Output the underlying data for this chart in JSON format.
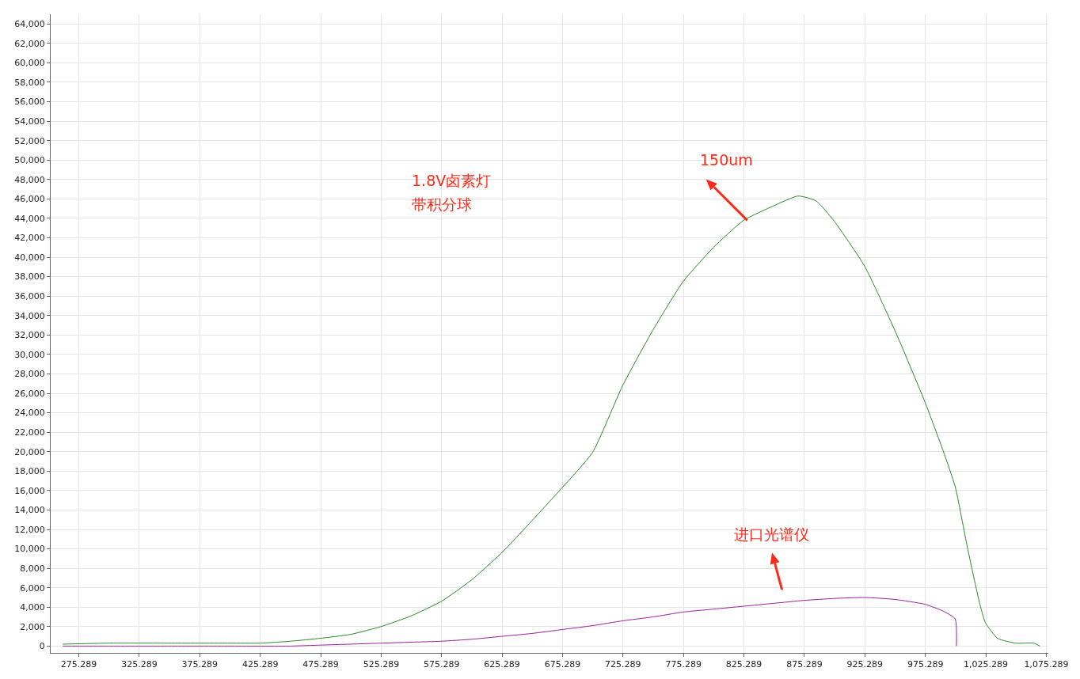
{
  "chart_data": {
    "type": "line",
    "x": [
      262,
      300,
      350,
      400,
      425,
      450,
      475,
      500,
      525,
      550,
      575,
      600,
      625,
      650,
      675,
      700,
      725,
      750,
      775,
      800,
      825,
      850,
      870,
      885,
      900,
      925,
      950,
      975,
      990,
      1000,
      1010,
      1020,
      1025,
      1035,
      1050,
      1065,
      1070
    ],
    "series": [
      {
        "color": "#2a8a2a",
        "values": [
          200,
          300,
          300,
          300,
          300,
          500,
          800,
          1200,
          2000,
          3100,
          4600,
          6800,
          9600,
          12900,
          16300,
          19900,
          26800,
          32500,
          37500,
          41000,
          43800,
          45300,
          46300,
          45800,
          43700,
          39100,
          32500,
          25100,
          20100,
          16400,
          10200,
          4500,
          2400,
          800,
          300,
          300,
          0
        ]
      },
      {
        "color": "#9c1f9c",
        "x": [
          262,
          300,
          350,
          400,
          450,
          475,
          500,
          525,
          550,
          575,
          600,
          625,
          650,
          675,
          700,
          725,
          750,
          775,
          800,
          825,
          850,
          875,
          900,
          925,
          950,
          975,
          990,
          1000,
          1001
        ],
        "values": [
          0,
          0,
          0,
          0,
          0,
          100,
          200,
          300,
          400,
          500,
          700,
          1000,
          1300,
          1700,
          2100,
          2600,
          3000,
          3500,
          3800,
          4100,
          4400,
          4700,
          4900,
          5000,
          4800,
          4300,
          3600,
          2800,
          0
        ]
      }
    ],
    "xlim": [
      252,
      1077
    ],
    "ylim": [
      -700,
      65000
    ],
    "xticks": [
      275.289,
      325.289,
      375.289,
      425.289,
      475.289,
      525.289,
      575.289,
      625.289,
      675.289,
      725.289,
      775.289,
      825.289,
      875.289,
      925.289,
      975.289,
      {
        "value": 1025.289,
        "label": "1,025.289"
      },
      {
        "value": 1075.289,
        "label": "1,075.289"
      }
    ],
    "yticks": [
      0,
      {
        "value": 2000,
        "label": "2,000"
      },
      {
        "value": 4000,
        "label": "4,000"
      },
      {
        "value": 6000,
        "label": "6,000"
      },
      {
        "value": 8000,
        "label": "8,000"
      },
      {
        "value": 10000,
        "label": "10,000"
      },
      {
        "value": 12000,
        "label": "12,000"
      },
      {
        "value": 14000,
        "label": "14,000"
      },
      {
        "value": 16000,
        "label": "16,000"
      },
      {
        "value": 18000,
        "label": "18,000"
      },
      {
        "value": 20000,
        "label": "20,000"
      },
      {
        "value": 22000,
        "label": "22,000"
      },
      {
        "value": 24000,
        "label": "24,000"
      },
      {
        "value": 26000,
        "label": "26,000"
      },
      {
        "value": 28000,
        "label": "28,000"
      },
      {
        "value": 30000,
        "label": "30,000"
      },
      {
        "value": 32000,
        "label": "32,000"
      },
      {
        "value": 34000,
        "label": "34,000"
      },
      {
        "value": 36000,
        "label": "36,000"
      },
      {
        "value": 38000,
        "label": "38,000"
      },
      {
        "value": 40000,
        "label": "40,000"
      },
      {
        "value": 42000,
        "label": "42,000"
      },
      {
        "value": 44000,
        "label": "44,000"
      },
      {
        "value": 46000,
        "label": "46,000"
      },
      {
        "value": 48000,
        "label": "48,000"
      },
      {
        "value": 50000,
        "label": "50,000"
      },
      {
        "value": 52000,
        "label": "52,000"
      },
      {
        "value": 54000,
        "label": "54,000"
      },
      {
        "value": 56000,
        "label": "56,000"
      },
      {
        "value": 58000,
        "label": "58,000"
      },
      {
        "value": 60000,
        "label": "60,000"
      },
      {
        "value": 62000,
        "label": "62,000"
      },
      {
        "value": 64000,
        "label": "64,000"
      }
    ],
    "grid": true,
    "marker": "none",
    "line_style": "solid",
    "annotations": [
      "1.8V卤素灯",
      "带积分球",
      {
        "text": "150um",
        "x": 828,
        "y": 43800
      },
      "进口光谱仪"
    ]
  }
}
